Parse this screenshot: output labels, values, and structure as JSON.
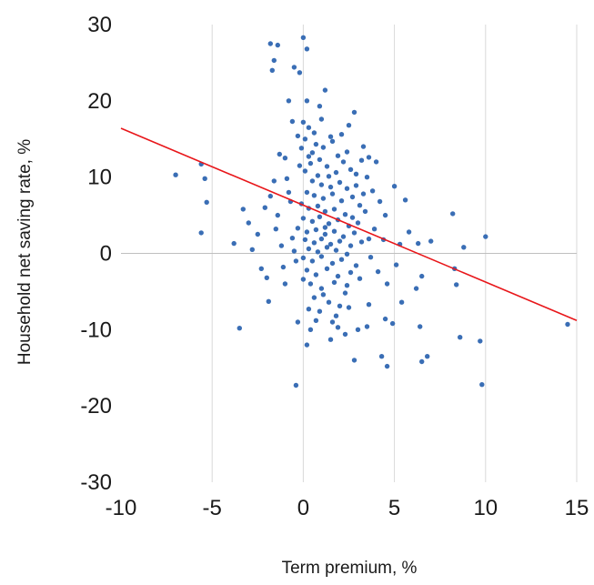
{
  "chart_data": {
    "type": "scatter",
    "title": "",
    "xlabel": "Term premium, %",
    "ylabel": "Household net saving rate, %",
    "xlim": [
      -10,
      15
    ],
    "ylim": [
      -30,
      30
    ],
    "xticks": [
      -10,
      -5,
      0,
      5,
      10,
      15
    ],
    "yticks": [
      -30,
      -20,
      -10,
      0,
      10,
      20,
      30
    ],
    "grid": "vertical",
    "legend": "none",
    "colors": {
      "points": "#3a6eb5",
      "trend": "#e8161a",
      "grid": "#d9d9d9",
      "zero_line": "#bfbfbf"
    },
    "trendline": {
      "x": [
        -10,
        15
      ],
      "y": [
        16.4,
        -8.8
      ]
    },
    "series": [
      {
        "points": [
          [
            -7.0,
            10.3
          ],
          [
            -5.6,
            11.7
          ],
          [
            -5.4,
            9.8
          ],
          [
            -5.3,
            6.7
          ],
          [
            -5.6,
            2.7
          ],
          [
            -3.5,
            -9.8
          ],
          [
            -3.8,
            1.3
          ],
          [
            -3.3,
            5.8
          ],
          [
            -3.0,
            4.0
          ],
          [
            -2.8,
            0.5
          ],
          [
            -2.5,
            2.5
          ],
          [
            -2.3,
            -2.0
          ],
          [
            -2.1,
            6.0
          ],
          [
            -1.8,
            7.5
          ],
          [
            -1.6,
            9.5
          ],
          [
            -1.9,
            -6.3
          ],
          [
            -2.0,
            -3.2
          ],
          [
            -1.5,
            3.2
          ],
          [
            -1.2,
            1.0
          ],
          [
            -1.0,
            -4.0
          ],
          [
            -1.4,
            5.0
          ],
          [
            -0.8,
            8.0
          ],
          [
            -0.6,
            2.0
          ],
          [
            -0.4,
            -1.0
          ],
          [
            -0.3,
            -9.0
          ],
          [
            -1.8,
            27.5
          ],
          [
            -1.4,
            27.3
          ],
          [
            -1.6,
            25.3
          ],
          [
            -1.7,
            24.0
          ],
          [
            -0.5,
            24.4
          ],
          [
            -0.2,
            23.7
          ],
          [
            0.0,
            28.3
          ],
          [
            0.2,
            26.8
          ],
          [
            -0.8,
            20.0
          ],
          [
            0.2,
            20.0
          ],
          [
            -0.6,
            17.3
          ],
          [
            -0.3,
            15.4
          ],
          [
            0.0,
            17.2
          ],
          [
            0.3,
            16.5
          ],
          [
            0.6,
            15.8
          ],
          [
            0.9,
            19.3
          ],
          [
            1.2,
            21.4
          ],
          [
            1.0,
            17.6
          ],
          [
            -0.4,
            -17.3
          ],
          [
            0.2,
            -12.0
          ],
          [
            0.4,
            -10.0
          ],
          [
            0.7,
            -8.8
          ],
          [
            1.5,
            -11.3
          ],
          [
            1.9,
            -9.7
          ],
          [
            2.3,
            -10.6
          ],
          [
            -0.1,
            13.8
          ],
          [
            0.3,
            12.7
          ],
          [
            0.7,
            14.3
          ],
          [
            1.1,
            13.9
          ],
          [
            1.6,
            14.7
          ],
          [
            2.1,
            15.6
          ],
          [
            2.5,
            16.8
          ],
          [
            2.8,
            18.5
          ],
          [
            3.3,
            14.0
          ],
          [
            3.6,
            12.6
          ],
          [
            -0.2,
            11.5
          ],
          [
            0.1,
            10.8
          ],
          [
            0.4,
            11.8
          ],
          [
            0.8,
            10.2
          ],
          [
            1.3,
            11.4
          ],
          [
            1.8,
            10.6
          ],
          [
            2.2,
            12.0
          ],
          [
            2.6,
            11.0
          ],
          [
            0.5,
            9.5
          ],
          [
            1.0,
            9.0
          ],
          [
            1.5,
            8.7
          ],
          [
            2.0,
            9.3
          ],
          [
            2.4,
            8.5
          ],
          [
            0.2,
            8.0
          ],
          [
            0.6,
            7.6
          ],
          [
            1.1,
            7.2
          ],
          [
            1.6,
            7.8
          ],
          [
            2.1,
            6.9
          ],
          [
            2.7,
            7.4
          ],
          [
            3.1,
            6.3
          ],
          [
            -0.1,
            6.5
          ],
          [
            0.3,
            5.9
          ],
          [
            0.8,
            6.2
          ],
          [
            1.2,
            5.5
          ],
          [
            1.7,
            5.8
          ],
          [
            2.3,
            5.1
          ],
          [
            0.0,
            4.6
          ],
          [
            0.5,
            4.2
          ],
          [
            0.9,
            4.8
          ],
          [
            1.4,
            3.9
          ],
          [
            1.9,
            4.4
          ],
          [
            2.5,
            3.6
          ],
          [
            3.0,
            4.0
          ],
          [
            -0.3,
            3.3
          ],
          [
            0.2,
            2.8
          ],
          [
            0.7,
            3.1
          ],
          [
            1.2,
            2.5
          ],
          [
            1.7,
            2.9
          ],
          [
            2.2,
            2.2
          ],
          [
            2.8,
            2.7
          ],
          [
            0.1,
            1.8
          ],
          [
            0.6,
            1.4
          ],
          [
            1.0,
            1.9
          ],
          [
            1.5,
            1.2
          ],
          [
            2.0,
            1.6
          ],
          [
            2.6,
            1.0
          ],
          [
            3.2,
            1.5
          ],
          [
            0.3,
            0.6
          ],
          [
            0.8,
            0.2
          ],
          [
            1.3,
            0.8
          ],
          [
            1.8,
            0.4
          ],
          [
            2.4,
            -0.1
          ],
          [
            0.0,
            -0.6
          ],
          [
            0.5,
            -1.0
          ],
          [
            1.0,
            -0.4
          ],
          [
            1.6,
            -1.3
          ],
          [
            2.1,
            -0.8
          ],
          [
            2.9,
            -1.6
          ],
          [
            0.2,
            -2.2
          ],
          [
            0.7,
            -2.8
          ],
          [
            1.3,
            -2.0
          ],
          [
            1.9,
            -3.0
          ],
          [
            2.6,
            -2.5
          ],
          [
            0.4,
            -4.0
          ],
          [
            1.0,
            -4.6
          ],
          [
            1.7,
            -3.8
          ],
          [
            2.3,
            -5.2
          ],
          [
            0.6,
            -5.8
          ],
          [
            1.4,
            -6.4
          ],
          [
            2.0,
            -6.9
          ],
          [
            0.9,
            -7.6
          ],
          [
            1.8,
            -8.2
          ],
          [
            3.0,
            -10.0
          ],
          [
            3.5,
            -9.6
          ],
          [
            4.3,
            -13.5
          ],
          [
            2.8,
            -14.0
          ],
          [
            4.6,
            -14.8
          ],
          [
            4.5,
            -8.6
          ],
          [
            4.9,
            -9.2
          ],
          [
            6.4,
            -9.6
          ],
          [
            6.5,
            -14.2
          ],
          [
            6.8,
            -13.5
          ],
          [
            8.6,
            -11.0
          ],
          [
            9.7,
            -11.5
          ],
          [
            9.8,
            -17.2
          ],
          [
            3.5,
            10.0
          ],
          [
            3.8,
            8.2
          ],
          [
            4.2,
            6.8
          ],
          [
            3.4,
            5.5
          ],
          [
            3.9,
            3.2
          ],
          [
            4.4,
            1.8
          ],
          [
            3.7,
            -0.5
          ],
          [
            4.1,
            -2.4
          ],
          [
            4.6,
            -4.0
          ],
          [
            5.0,
            8.8
          ],
          [
            5.6,
            7.0
          ],
          [
            5.3,
            1.2
          ],
          [
            5.8,
            2.8
          ],
          [
            5.1,
            -1.5
          ],
          [
            6.3,
            1.3
          ],
          [
            6.5,
            -3.0
          ],
          [
            7.0,
            1.6
          ],
          [
            8.2,
            5.2
          ],
          [
            8.3,
            -2.0
          ],
          [
            8.4,
            -4.1
          ],
          [
            8.8,
            0.8
          ],
          [
            10.0,
            2.2
          ],
          [
            14.5,
            -9.3
          ],
          [
            4.0,
            12.0
          ],
          [
            3.2,
            12.2
          ],
          [
            2.9,
            8.9
          ],
          [
            4.5,
            5.0
          ],
          [
            5.4,
            -6.4
          ],
          [
            6.2,
            -4.6
          ],
          [
            3.6,
            -6.7
          ],
          [
            -1.0,
            12.5
          ],
          [
            -0.9,
            9.8
          ],
          [
            -1.3,
            13.0
          ],
          [
            -0.7,
            6.8
          ],
          [
            -1.1,
            -1.8
          ],
          [
            0.1,
            15.0
          ],
          [
            1.5,
            15.3
          ],
          [
            0.9,
            12.3
          ],
          [
            1.9,
            12.8
          ],
          [
            2.4,
            13.3
          ],
          [
            0.0,
            -3.4
          ],
          [
            1.1,
            -5.4
          ],
          [
            2.4,
            -4.2
          ],
          [
            3.1,
            -3.3
          ],
          [
            0.5,
            13.2
          ],
          [
            1.4,
            10.1
          ],
          [
            2.9,
            10.4
          ],
          [
            3.3,
            7.8
          ],
          [
            2.7,
            4.7
          ],
          [
            1.2,
            3.4
          ],
          [
            -0.5,
            0.3
          ],
          [
            3.6,
            1.9
          ],
          [
            0.3,
            -7.3
          ],
          [
            1.6,
            -9.0
          ],
          [
            2.5,
            -7.1
          ]
        ]
      }
    ]
  },
  "axis": {
    "x_title": "Term premium, %",
    "y_title": "Household net saving rate, %",
    "x_tick_labels": [
      "-10",
      "-5",
      "0",
      "5",
      "10",
      "15"
    ],
    "y_tick_labels": [
      "-30",
      "-20",
      "-10",
      "0",
      "10",
      "20",
      "30"
    ]
  }
}
